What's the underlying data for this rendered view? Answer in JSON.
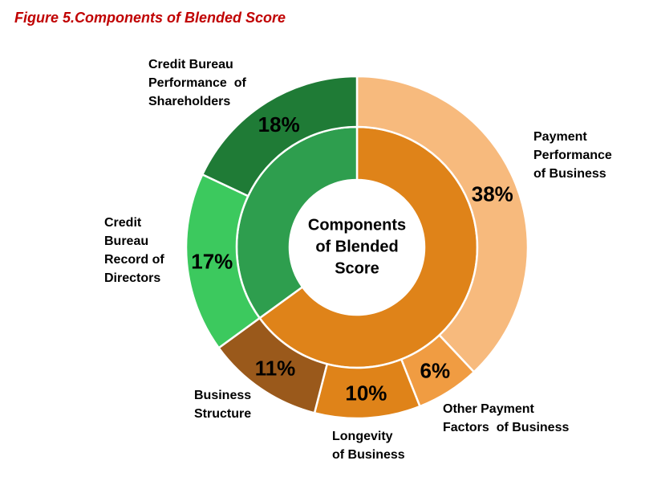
{
  "title": "Figure 5.Components of Blended Score",
  "chart_data": {
    "type": "pie",
    "subtype": "double-ring-donut",
    "title": "Components of Blended Score",
    "center_label": "Components\nof Blended\nScore",
    "start_angle_deg": 0,
    "direction": "clockwise",
    "legend": "none",
    "segments": [
      {
        "id": "payment-performance-of-business",
        "label": "Payment Performance of Business",
        "callout": "Payment\nPerformance\nof Business",
        "value": 38,
        "pct_label": "38%",
        "color": "#F7BA7D"
      },
      {
        "id": "other-payment-factors-of-business",
        "label": "Other Payment Factors of Business",
        "callout": "Other Payment\nFactors  of Business",
        "value": 6,
        "pct_label": "6%",
        "color": "#F09C42"
      },
      {
        "id": "longevity-of-business",
        "label": "Longevity of Business",
        "callout": "Longevity\nof Business",
        "value": 10,
        "pct_label": "10%",
        "color": "#DF8319"
      },
      {
        "id": "business-structure",
        "label": "Business Structure",
        "callout": "Business\nStructure",
        "value": 11,
        "pct_label": "11%",
        "color": "#9A591B"
      },
      {
        "id": "credit-bureau-record-of-directors",
        "label": "Credit Bureau Record of Directors",
        "callout": "Credit\nBureau\nRecord of\nDirectors",
        "value": 17,
        "pct_label": "17%",
        "color": "#3CC95E"
      },
      {
        "id": "credit-bureau-performance-of-shareholders",
        "label": "Credit Bureau Performance of Shareholders",
        "callout": "Credit Bureau\nPerformance  of\nShareholders",
        "value": 18,
        "pct_label": "18%",
        "color": "#1F7B36"
      }
    ],
    "inner_segments": [
      {
        "id": "payment-factors-group",
        "value": 65,
        "color": "#DF8319"
      },
      {
        "id": "credit-bureau-group",
        "value": 35,
        "color": "#2E9E4E"
      }
    ]
  }
}
